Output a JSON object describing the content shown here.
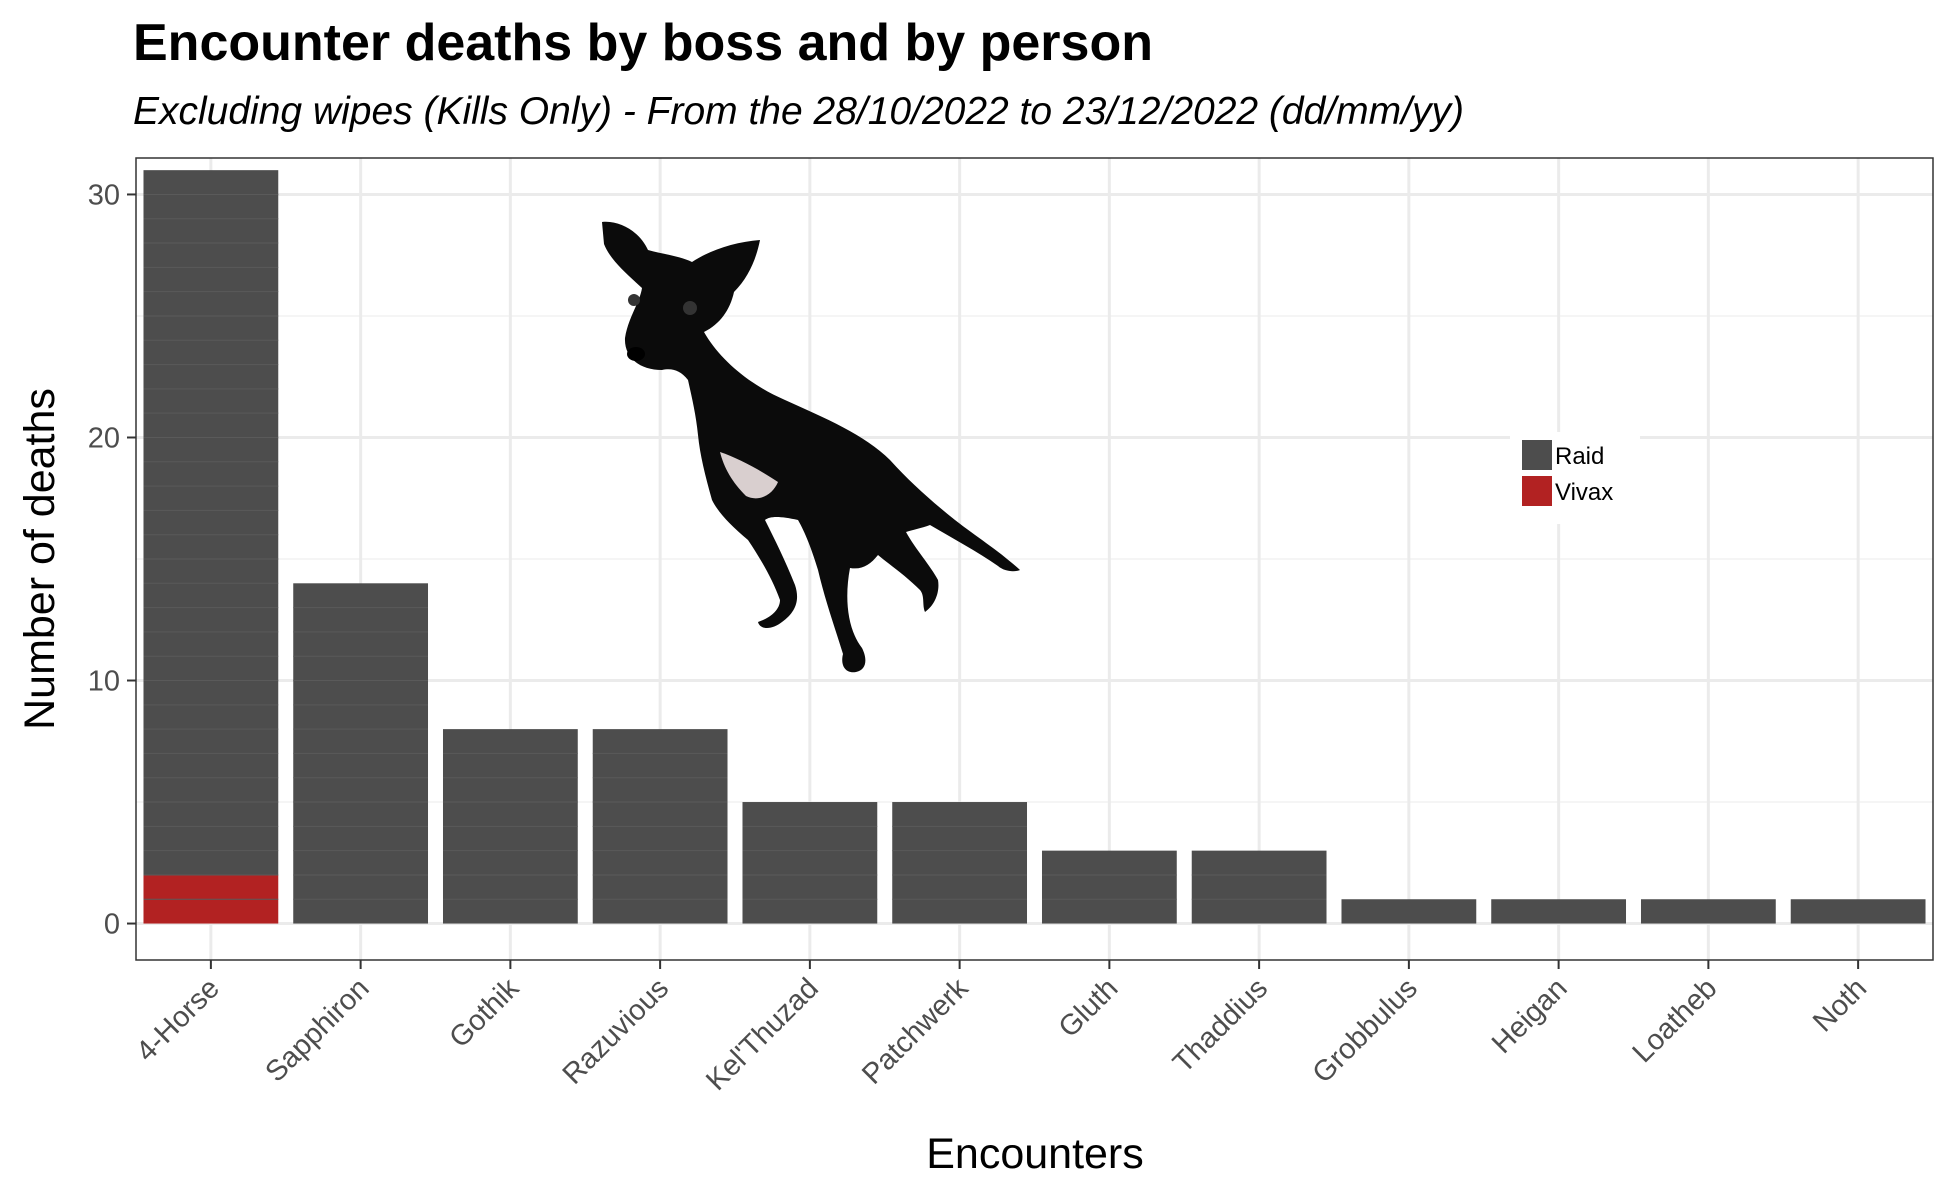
{
  "chart_data": {
    "type": "bar",
    "title": "Encounter deaths by boss and by person",
    "subtitle": "Excluding wipes (Kills Only) - From the 28/10/2022 to 23/12/2022 (dd/mm/yy)",
    "xlabel": "Encounters",
    "ylabel": "Number of deaths",
    "categories": [
      "4-Horse",
      "Sapphiron",
      "Gothik",
      "Razuvious",
      "Kel'Thuzad",
      "Patchwerk",
      "Gluth",
      "Thaddius",
      "Grobbulus",
      "Heigan",
      "Loatheb",
      "Noth"
    ],
    "stacked": true,
    "series": [
      {
        "name": "Raid",
        "color": "#4d4d4d",
        "values": [
          29,
          14,
          8,
          8,
          5,
          5,
          3,
          3,
          1,
          1,
          1,
          1
        ]
      },
      {
        "name": "Vivax",
        "color": "#b22222",
        "values": [
          2,
          0,
          0,
          0,
          0,
          0,
          0,
          0,
          0,
          0,
          0,
          0
        ]
      }
    ],
    "ylim": [
      -1.5,
      31.5
    ],
    "yticks": [
      0,
      10,
      20,
      30
    ],
    "grid": true,
    "legend_position": "inside-right"
  },
  "image": {
    "icon": "black-dog-photo"
  }
}
